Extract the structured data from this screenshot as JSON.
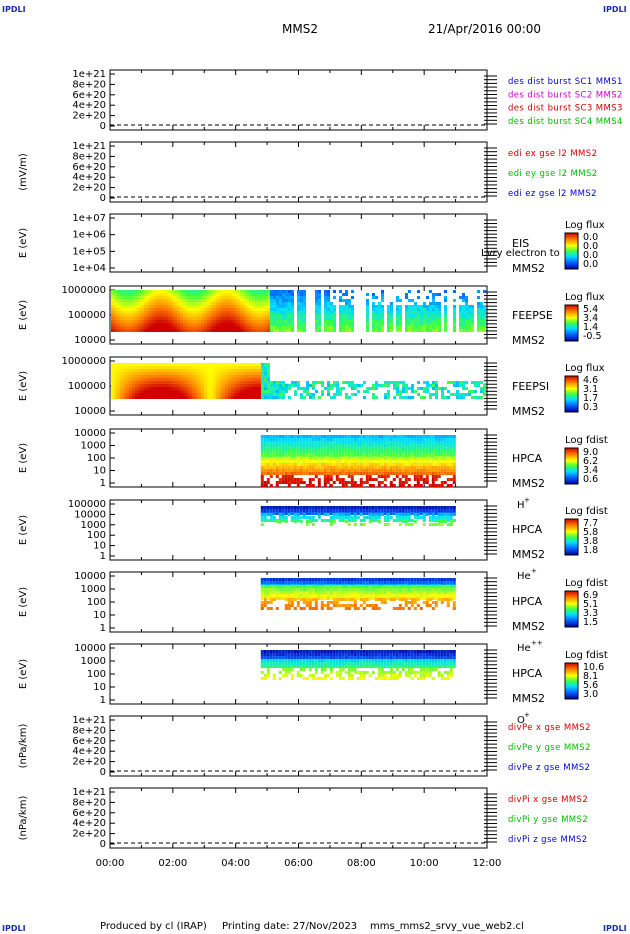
{
  "header": {
    "corner_label": "IPDLI",
    "spacecraft": "MMS2",
    "date": "21/Apr/2016 00:00"
  },
  "footer": {
    "produced_by": "Produced by cl (IRAP)",
    "printing_date": "Printing date: 27/Nov/2023",
    "filename": "mms_mms2_srvy_vue_web2.cl"
  },
  "chart_data": {
    "type": "heatmap",
    "x_axis": {
      "ticks": [
        "00:00",
        "02:00",
        "04:00",
        "06:00",
        "08:00",
        "10:00",
        "12:00"
      ],
      "range_hours": [
        0,
        12
      ]
    },
    "panels": [
      {
        "id": "des",
        "ylabel": "",
        "yticks": [
          "1e+21",
          "8e+20",
          "6e+20",
          "4e+20",
          "2e+20",
          "0"
        ],
        "legend": [
          {
            "text": "des dist burst SC1 MMS1",
            "color": "#0000cc"
          },
          {
            "text": "des dist burst SC2 MMS2",
            "color": "#cc00cc"
          },
          {
            "text": "des dist burst SC3 MMS3",
            "color": "#cc0000"
          },
          {
            "text": "des dist burst SC4 MMS4",
            "color": "#00bb00"
          }
        ]
      },
      {
        "id": "edi",
        "ylabel": "(mV/m)",
        "yticks": [
          "1e+21",
          "8e+20",
          "6e+20",
          "4e+20",
          "2e+20",
          "0"
        ],
        "legend": [
          {
            "text": "edi ex gse l2 MMS2",
            "color": "#cc0000"
          },
          {
            "text": "edi ey gse l2 MMS2",
            "color": "#00bb00"
          },
          {
            "text": "edi ez gse l2 MMS2",
            "color": "#0000cc"
          }
        ]
      },
      {
        "id": "eis",
        "ylabel": "E (eV)",
        "yticks": [
          "1e+07",
          "1e+06",
          "1e+05",
          "1e+04"
        ],
        "instrument": "EIS",
        "sc": "MMS2",
        "note": "Lvry electron to",
        "cbar_title": "Log flux",
        "cbar": [
          "0.0",
          "0.0",
          "0.0",
          "0.0"
        ]
      },
      {
        "id": "feepse",
        "ylabel": "E (eV)",
        "yticks": [
          "1000000",
          "100000",
          "10000"
        ],
        "instrument": "FEEPSE",
        "sc": "MMS2",
        "cbar_title": "Log flux",
        "cbar": [
          "5.4",
          "3.4",
          "1.4",
          "-0.5"
        ]
      },
      {
        "id": "feepsi",
        "ylabel": "E (eV)",
        "yticks": [
          "1000000",
          "100000",
          "10000"
        ],
        "instrument": "FEEPSI",
        "sc": "MMS2",
        "cbar_title": "Log flux",
        "cbar": [
          "4.6",
          "3.1",
          "1.7",
          "0.3"
        ]
      },
      {
        "id": "hpca_h",
        "ylabel": "E (eV)",
        "yticks": [
          "10000",
          "1000",
          "100",
          "10",
          "1"
        ],
        "instrument": "HPCA",
        "sc": "MMS2",
        "species": "H",
        "sup": "+",
        "cbar_title": "Log fdist",
        "cbar": [
          "9.0",
          "6.2",
          "3.4",
          "0.6"
        ]
      },
      {
        "id": "hpca_he",
        "ylabel": "E (eV)",
        "yticks": [
          "100000",
          "10000",
          "1000",
          "100",
          "10",
          "1"
        ],
        "instrument": "HPCA",
        "sc": "MMS2",
        "species": "He",
        "sup": "+",
        "cbar_title": "Log fdist",
        "cbar": [
          "7.7",
          "5.8",
          "3.8",
          "1.8"
        ]
      },
      {
        "id": "hpca_hepp",
        "ylabel": "E (eV)",
        "yticks": [
          "10000",
          "1000",
          "100",
          "10",
          "1"
        ],
        "instrument": "HPCA",
        "sc": "MMS2",
        "species": "He",
        "sup": "++",
        "cbar_title": "Log fdist",
        "cbar": [
          "6.9",
          "5.1",
          "3.3",
          "1.5"
        ]
      },
      {
        "id": "hpca_o",
        "ylabel": "E (eV)",
        "yticks": [
          "10000",
          "1000",
          "100",
          "10",
          "1"
        ],
        "instrument": "HPCA",
        "sc": "MMS2",
        "species": "O",
        "sup": "+",
        "cbar_title": "Log fdist",
        "cbar": [
          "10.6",
          "8.1",
          "5.6",
          "3.0"
        ]
      },
      {
        "id": "divpe",
        "ylabel": "(nPa/km)",
        "yticks": [
          "1e+21",
          "8e+20",
          "6e+20",
          "4e+20",
          "2e+20",
          "0"
        ],
        "legend": [
          {
            "text": "divPe x gse MMS2",
            "color": "#cc0000"
          },
          {
            "text": "divPe y gse MMS2",
            "color": "#00bb00"
          },
          {
            "text": "divPe z gse MMS2",
            "color": "#0000cc"
          }
        ]
      },
      {
        "id": "divpi",
        "ylabel": "(nPa/km)",
        "yticks": [
          "1e+21",
          "8e+20",
          "6e+20",
          "4e+20",
          "2e+20",
          "0"
        ],
        "legend": [
          {
            "text": "divPi x gse MMS2",
            "color": "#cc0000"
          },
          {
            "text": "divPi y gse MMS2",
            "color": "#00bb00"
          },
          {
            "text": "divPi z gse MMS2",
            "color": "#0000cc"
          }
        ]
      }
    ]
  }
}
